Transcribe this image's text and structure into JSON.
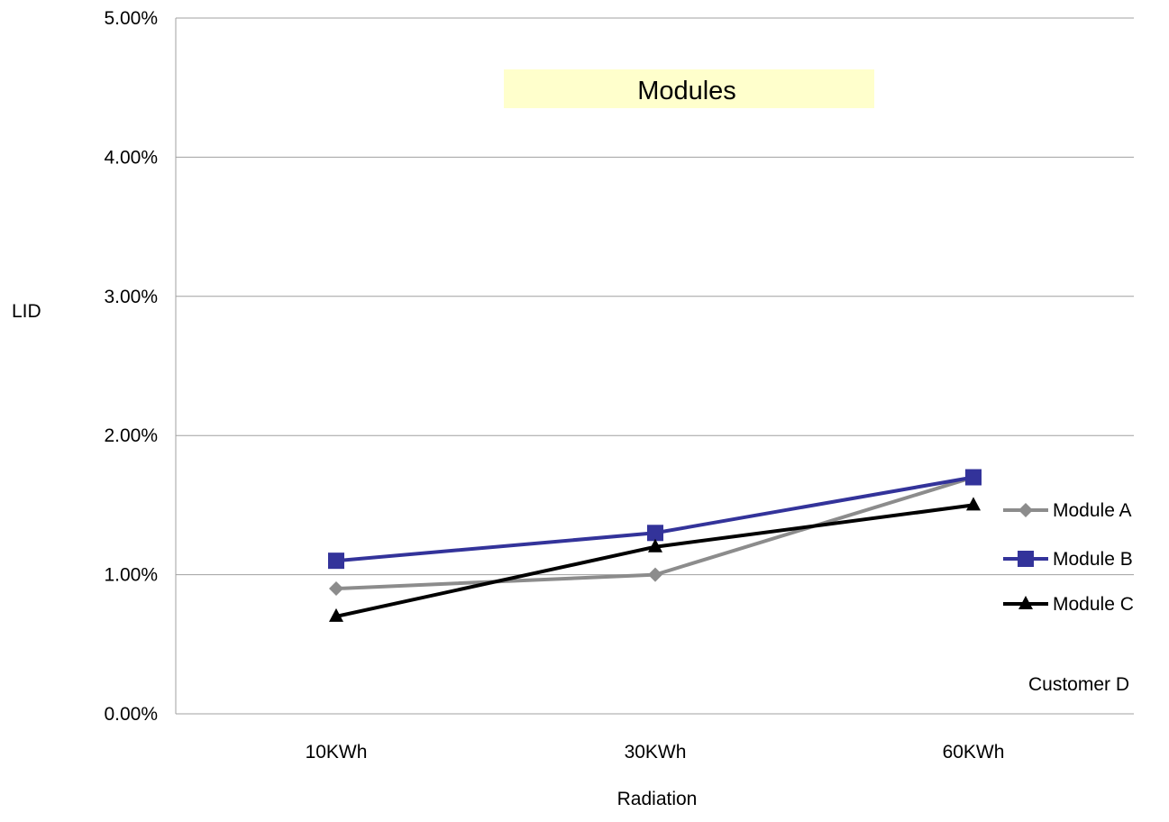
{
  "chart_data": {
    "type": "line",
    "title": "Modules",
    "xlabel": "Radiation",
    "ylabel": "LID",
    "categories": [
      "10KWh",
      "30KWh",
      "60KWh"
    ],
    "ylim": [
      0,
      0.05
    ],
    "yticks": [
      0,
      0.01,
      0.02,
      0.03,
      0.04,
      0.05
    ],
    "ytick_labels": [
      "0.00%",
      "1.00%",
      "2.00%",
      "3.00%",
      "4.00%",
      "5.00%"
    ],
    "grid": "horizontal",
    "legend_position": "right",
    "annotation": "Customer D",
    "series": [
      {
        "name": "Module A",
        "values": [
          0.009,
          0.01,
          0.017
        ],
        "color": "#8c8c8c",
        "marker": "diamond"
      },
      {
        "name": "Module B",
        "values": [
          0.011,
          0.013,
          0.017
        ],
        "color": "#33339a",
        "marker": "square"
      },
      {
        "name": "Module C",
        "values": [
          0.007,
          0.012,
          0.015
        ],
        "color": "#000000",
        "marker": "triangle"
      }
    ],
    "colors": {
      "title_background": "#ffffcc",
      "gridline": "#a0a0a0"
    }
  }
}
